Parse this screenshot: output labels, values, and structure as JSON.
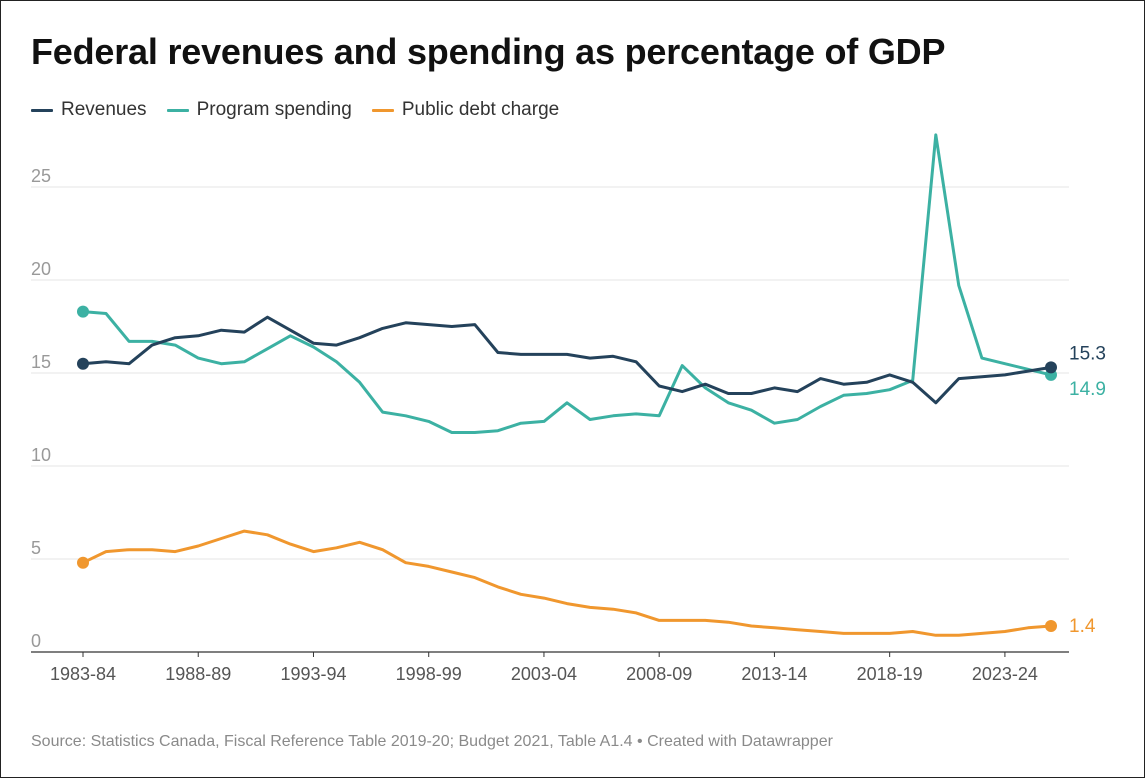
{
  "colors": {
    "revenues": "#24425b",
    "program_spending": "#3cb1a3",
    "public_debt_charge": "#f0972e",
    "grid": "#e6e6e6",
    "axis": "#333333",
    "tick_text": "#999999"
  },
  "legend": [
    {
      "label": "Revenues",
      "color": "#24425b"
    },
    {
      "label": "Program spending",
      "color": "#3cb1a3"
    },
    {
      "label": "Public debt charge",
      "color": "#f0972e"
    }
  ],
  "source": "Source: Statistics Canada, Fiscal Reference Table 2019-20; Budget 2021, Table A1.4 • Created with Datawrapper",
  "chart_data": {
    "type": "line",
    "title": "Federal revenues and spending as percentage of GDP",
    "xlabel": "",
    "ylabel": "",
    "ylim": [
      0,
      28
    ],
    "yticks": [
      0,
      5,
      10,
      15,
      20,
      25
    ],
    "grid": true,
    "legend_position": "top-left",
    "x": [
      "1983-84",
      "1984-85",
      "1985-86",
      "1986-87",
      "1987-88",
      "1988-89",
      "1989-90",
      "1990-91",
      "1991-92",
      "1992-93",
      "1993-94",
      "1994-95",
      "1995-96",
      "1996-97",
      "1997-98",
      "1998-99",
      "1999-00",
      "2000-01",
      "2001-02",
      "2002-03",
      "2003-04",
      "2004-05",
      "2005-06",
      "2006-07",
      "2007-08",
      "2008-09",
      "2009-10",
      "2010-11",
      "2011-12",
      "2012-13",
      "2013-14",
      "2014-15",
      "2015-16",
      "2016-17",
      "2017-18",
      "2018-19",
      "2019-20",
      "2020-21",
      "2021-22",
      "2022-23",
      "2023-24",
      "2024-25",
      "2025-26"
    ],
    "xtick_labels": [
      "1983-84",
      "1988-89",
      "1993-94",
      "1998-99",
      "2003-04",
      "2008-09",
      "2013-14",
      "2018-19",
      "2023-24"
    ],
    "series": [
      {
        "name": "Revenues",
        "color": "#24425b",
        "end_label": "15.3",
        "values": [
          15.5,
          15.6,
          15.5,
          16.5,
          16.9,
          17.0,
          17.3,
          17.2,
          18.0,
          17.3,
          16.6,
          16.5,
          16.9,
          17.4,
          17.7,
          17.6,
          17.5,
          17.6,
          16.1,
          16.0,
          16.0,
          16.0,
          15.8,
          15.9,
          15.6,
          14.3,
          14.0,
          14.4,
          13.9,
          13.9,
          14.2,
          14.0,
          14.7,
          14.4,
          14.5,
          14.9,
          14.5,
          13.4,
          14.7,
          14.8,
          14.9,
          15.1,
          15.3
        ]
      },
      {
        "name": "Program spending",
        "color": "#3cb1a3",
        "end_label": "14.9",
        "values": [
          18.3,
          18.2,
          16.7,
          16.7,
          16.5,
          15.8,
          15.5,
          15.6,
          16.3,
          17.0,
          16.4,
          15.6,
          14.5,
          12.9,
          12.7,
          12.4,
          11.8,
          11.8,
          11.9,
          12.3,
          12.4,
          13.4,
          12.5,
          12.7,
          12.8,
          12.7,
          15.4,
          14.2,
          13.4,
          13.0,
          12.3,
          12.5,
          13.2,
          13.8,
          13.9,
          14.1,
          14.6,
          27.8,
          19.7,
          15.8,
          15.5,
          15.2,
          14.9
        ]
      },
      {
        "name": "Public debt charge",
        "color": "#f0972e",
        "end_label": "1.4",
        "values": [
          4.8,
          5.4,
          5.5,
          5.5,
          5.4,
          5.7,
          6.1,
          6.5,
          6.3,
          5.8,
          5.4,
          5.6,
          5.9,
          5.5,
          4.8,
          4.6,
          4.3,
          4.0,
          3.5,
          3.1,
          2.9,
          2.6,
          2.4,
          2.3,
          2.1,
          1.7,
          1.7,
          1.7,
          1.6,
          1.4,
          1.3,
          1.2,
          1.1,
          1.0,
          1.0,
          1.0,
          1.1,
          0.9,
          0.9,
          1.0,
          1.1,
          1.3,
          1.4
        ]
      }
    ]
  }
}
